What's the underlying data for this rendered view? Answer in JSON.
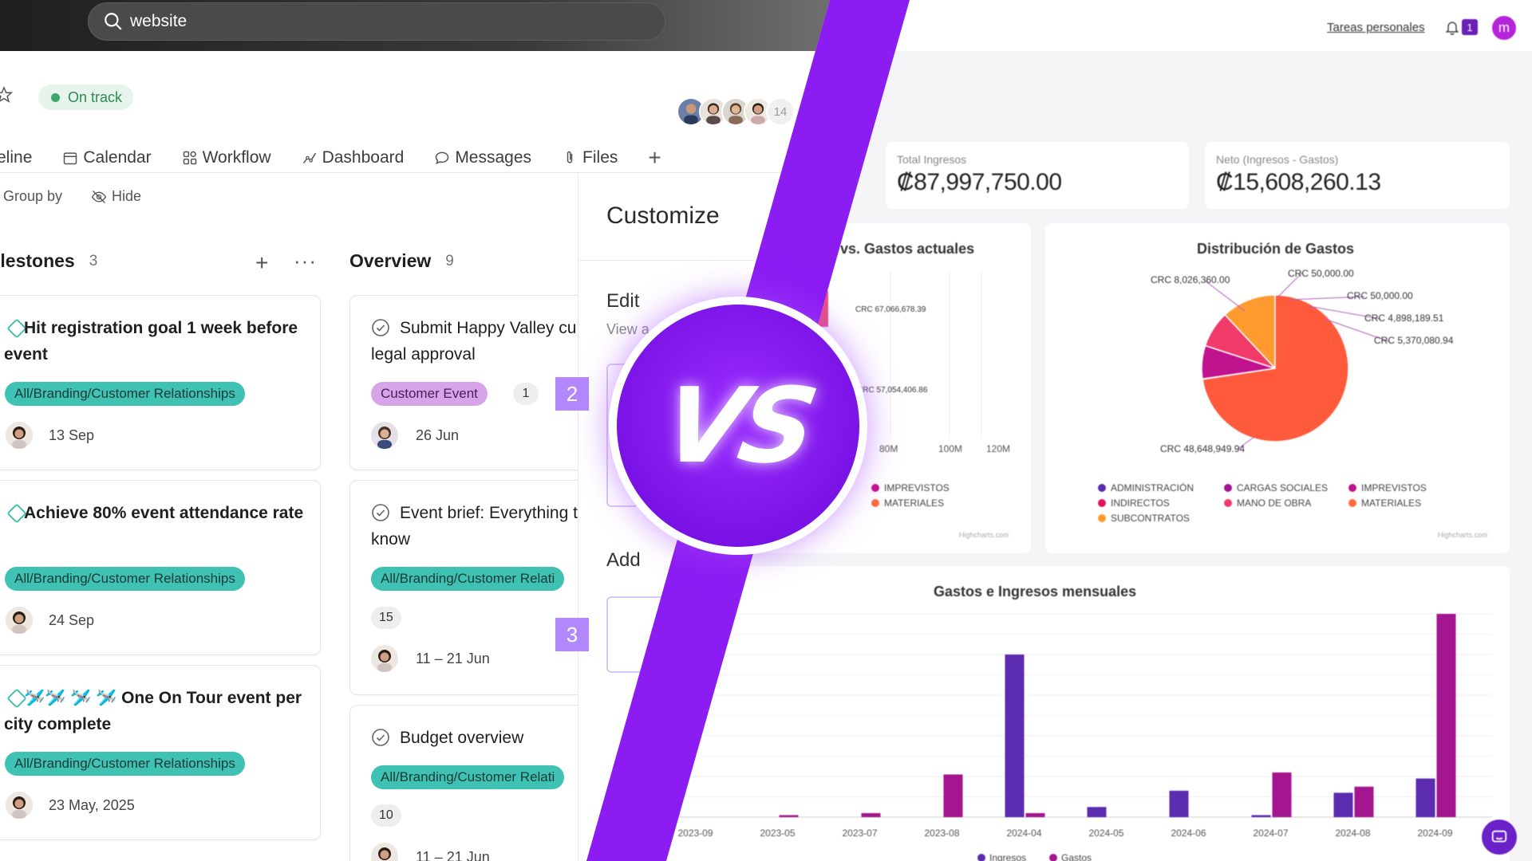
{
  "left_app": {
    "search": {
      "value": "website"
    },
    "status": {
      "label": "On track",
      "color": "#3aa76d"
    },
    "members": {
      "extra_count": "14"
    },
    "tabs": [
      {
        "label": "eline",
        "icon": "timeline-icon"
      },
      {
        "label": "Calendar",
        "icon": "calendar-icon"
      },
      {
        "label": "Workflow",
        "icon": "workflow-icon"
      },
      {
        "label": "Dashboard",
        "icon": "dashboard-icon"
      },
      {
        "label": "Messages",
        "icon": "message-icon"
      },
      {
        "label": "Files",
        "icon": "paperclip-icon"
      },
      {
        "label": "+",
        "icon": "plus-icon"
      }
    ],
    "toolbar": {
      "group_by": "Group by",
      "hide": "Hide"
    },
    "columns": [
      {
        "title": "ilestones",
        "count": "3",
        "cards": [
          {
            "title": "Hit registration goal 1 week before event",
            "tag": "All/Branding/Customer Relationships",
            "date": "13 Sep"
          },
          {
            "title": "Achieve 80% event attendance rate",
            "tag": "All/Branding/Customer Relationships",
            "date": "24 Sep"
          },
          {
            "title": "🛩️🛩️ 🛩️ 🛩️ One On Tour event per city complete",
            "tag": "All/Branding/Customer Relationships",
            "date": "23 May, 2025"
          }
        ]
      },
      {
        "title": "Overview",
        "count": "9",
        "cards": [
          {
            "title": "Submit Happy Valley cu story for legal approval",
            "tag": "Customer Event",
            "subtasks": "1",
            "date": "26 Jun"
          },
          {
            "title": "Event brief: Everything to know",
            "tag": "All/Branding/Customer Relati",
            "subtasks": "15",
            "date": "11 – 21 Jun"
          },
          {
            "title": "Budget overview",
            "tag": "All/Branding/Customer Relati",
            "subtasks": "10",
            "date": "11 – 21 Jun"
          }
        ]
      }
    ],
    "step_badges": [
      "2",
      "3"
    ],
    "customize": {
      "title": "Customize",
      "edit": "Edit",
      "view": "View a",
      "add": "Add"
    }
  },
  "right_app": {
    "top_link": "Tareas personales",
    "notifications": "1",
    "user_initial": "m",
    "stats": [
      {
        "label": "Total Ingresos",
        "value": "₡87,997,750.00"
      },
      {
        "label": "Neto (Ingresos - Gastos)",
        "value": "₡15,608,260.13"
      }
    ],
    "bar_panel": {
      "title": "vs. Gastos actuales",
      "labels": [
        "CRC 67,066,678.39",
        "CRC 57,054,406.86"
      ],
      "ticks": [
        "80M",
        "100M",
        "120M"
      ],
      "legend": [
        {
          "label": "IMPREVISTOS",
          "color": "#c2138e"
        },
        {
          "label": "MATERIALES",
          "color": "#ff6a3d"
        }
      ],
      "credit": "Highcharts.com"
    },
    "pie_panel": {
      "title": "Distribución de Gastos",
      "credit": "Highcharts.com",
      "chart_data": {
        "type": "pie",
        "title": "Distribución de Gastos",
        "slices": [
          {
            "label": "CRC 48,648,949.94",
            "value": 48648949.94,
            "color": "#ff5a3c"
          },
          {
            "label": "CRC 8,026,360.00",
            "value": 8026360.0,
            "color": "#ff9a2e"
          },
          {
            "label": "CRC 50,000.00",
            "value": 50000.0,
            "color": "#7a2cc7"
          },
          {
            "label": "CRC 4,898,189.51",
            "value": 4898189.51,
            "color": "#c2138e"
          },
          {
            "label": "CRC 5,370,080.94",
            "value": 5370080.94,
            "color": "#f03a6a"
          }
        ],
        "legend_placement": "bottom"
      },
      "legend": [
        {
          "label": "ADMINISTRACIÓN",
          "color": "#5b2bb0"
        },
        {
          "label": "CARGAS SOCIALES",
          "color": "#a4168f"
        },
        {
          "label": "IMPREVISTOS",
          "color": "#c2138e"
        },
        {
          "label": "INDIRECTOS",
          "color": "#e0145f"
        },
        {
          "label": "MANO DE OBRA",
          "color": "#f03a6a"
        },
        {
          "label": "MATERIALES",
          "color": "#ff6a3d"
        },
        {
          "label": "SUBCONTRATOS",
          "color": "#ff9a2e"
        }
      ]
    },
    "monthly_panel": {
      "title": "Gastos e Ingresos mensuales",
      "chart_data": {
        "type": "bar",
        "title": "Gastos e Ingresos mensuales",
        "categories": [
          "2023-09",
          "2023-05",
          "2023-07",
          "2023-08",
          "2024-04",
          "2024-05",
          "2024-06",
          "2024-07",
          "2024-08",
          "2024-09"
        ],
        "series": [
          {
            "name": "Ingresos",
            "color": "#5b2bb0",
            "values": [
              0,
              0,
              0,
              0,
              80,
              5,
              13,
              1,
              12,
              19
            ]
          },
          {
            "name": "Gastos",
            "color": "#a4168f",
            "values": [
              0,
              1,
              2,
              21,
              2,
              0,
              0,
              22,
              15,
              100
            ]
          }
        ],
        "ylim": [
          0,
          100
        ],
        "grid": true,
        "legend_placement": "bottom"
      }
    }
  },
  "vs": {
    "text": "VS"
  },
  "colors": {
    "band": "#8b1cf2",
    "accent_teal": "#3fc2b4"
  }
}
